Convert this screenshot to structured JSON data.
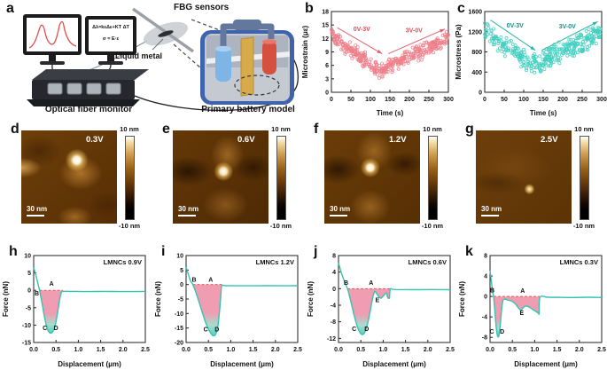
{
  "panel_a": {
    "letter": "a",
    "equation_line1": "Δλ=kεΔε+KT ΔT",
    "equation_line2": "σ = E·ε",
    "fbg_label": "FBG sensors",
    "liquid_metal_label": "Liquid metal",
    "device_label": "Optical fiber monitor",
    "battery_label": "Primary battery model"
  },
  "afm": {
    "cbar_top": "10 nm",
    "cbar_bottom": "-10 nm",
    "scale_label": "30 nm",
    "panels": [
      {
        "letter": "d",
        "voltage": "0.3V"
      },
      {
        "letter": "e",
        "voltage": "0.6V"
      },
      {
        "letter": "f",
        "voltage": "1.2V"
      },
      {
        "letter": "g",
        "voltage": "2.5V"
      }
    ]
  },
  "chart_data": [
    {
      "id": "b",
      "letter": "b",
      "type": "scatter",
      "xlabel": "Time (s)",
      "ylabel": "Microstrain (με)",
      "xlim": [
        0,
        300
      ],
      "ylim": [
        0,
        18
      ],
      "xticks": [
        0,
        50,
        100,
        150,
        200,
        250,
        300
      ],
      "yticks": [
        0,
        3,
        6,
        9,
        12,
        15,
        18
      ],
      "point_color": "#ee7f8b",
      "arrow_color": "#e0606c",
      "text_color": "#d8505e",
      "n_points": 380,
      "seed": 42,
      "spread": 2.0,
      "trend": [
        [
          0,
          12.6
        ],
        [
          122,
          4.8
        ],
        [
          300,
          11.8
        ]
      ],
      "annotations": [
        {
          "text": "0V-3V",
          "x": 78,
          "y": 13.6
        },
        {
          "text": "3V-0V",
          "x": 212,
          "y": 13.4
        }
      ],
      "arrows": [
        [
          15,
          14.4,
          130,
          8.6
        ],
        [
          146,
          8.6,
          291,
          14.1
        ]
      ]
    },
    {
      "id": "c",
      "letter": "c",
      "type": "scatter",
      "xlabel": "Time (s)",
      "ylabel": "Microstress (Pa)",
      "xlim": [
        0,
        300
      ],
      "ylim": [
        0,
        1600
      ],
      "xticks": [
        0,
        50,
        100,
        150,
        200,
        250,
        300
      ],
      "yticks": [
        0,
        400,
        800,
        1200,
        1600
      ],
      "point_color": "#41cfc0",
      "arrow_color": "#2fb4a6",
      "text_color": "#1f8d84",
      "n_points": 360,
      "seed": 7,
      "spread": 230,
      "trend": [
        [
          0,
          1210
        ],
        [
          122,
          520
        ],
        [
          300,
          1190
        ]
      ],
      "annotations": [
        {
          "text": "0V-3V",
          "x": 78,
          "y": 1280
        },
        {
          "text": "3V-0V",
          "x": 212,
          "y": 1270
        }
      ],
      "arrows": [
        [
          15,
          1430,
          130,
          830
        ],
        [
          146,
          830,
          290,
          1400
        ]
      ]
    },
    {
      "id": "h",
      "letter": "h",
      "type": "line",
      "label": "LMNCs  0.9V",
      "xlabel": "Displacement (μm)",
      "ylabel": "Force (nN)",
      "xlim": [
        0,
        2.5
      ],
      "ylim": [
        -15,
        10
      ],
      "xticks": [
        0,
        0.5,
        1,
        1.5,
        2,
        2.5
      ],
      "yticks": [
        10,
        5,
        0,
        -5,
        -10,
        -15
      ],
      "points": [
        [
          0,
          6.5
        ],
        [
          0.04,
          4.8
        ],
        [
          0.09,
          2.2
        ],
        [
          0.13,
          0
        ],
        [
          0.18,
          -3.2
        ],
        [
          0.24,
          -7.5
        ],
        [
          0.3,
          -10.8
        ],
        [
          0.36,
          -12.2
        ],
        [
          0.42,
          -12.0
        ],
        [
          0.48,
          -10.2
        ],
        [
          0.53,
          -6.8
        ],
        [
          0.58,
          -2.8
        ],
        [
          0.62,
          -0.6
        ],
        [
          0.66,
          -0.3
        ],
        [
          0.8,
          -0.3
        ],
        [
          1.2,
          -0.35
        ],
        [
          1.6,
          -0.3
        ],
        [
          2.0,
          -0.35
        ],
        [
          2.5,
          -0.3
        ]
      ],
      "fill_range": [
        0.13,
        0.64
      ],
      "dash_range": [
        0.13,
        0.66
      ],
      "markers": [
        {
          "t": "B",
          "x": 0.07,
          "y": -1.5
        },
        {
          "t": "A",
          "x": 0.4,
          "y": 1.3
        },
        {
          "t": "C",
          "x": 0.25,
          "y": -11.4
        },
        {
          "t": "D",
          "x": 0.5,
          "y": -11.4
        }
      ]
    },
    {
      "id": "i",
      "letter": "i",
      "type": "line",
      "label": "LMNCs  1.2V",
      "xlabel": "Displacement (μm)",
      "ylabel": "Force (nN)",
      "xlim": [
        0,
        2.5
      ],
      "ylim": [
        -20,
        10
      ],
      "xticks": [
        0,
        0.5,
        1,
        1.5,
        2,
        2.5
      ],
      "yticks": [
        10,
        5,
        0,
        -5,
        -10,
        -15,
        -20
      ],
      "points": [
        [
          0,
          6
        ],
        [
          0.05,
          3.5
        ],
        [
          0.1,
          1.2
        ],
        [
          0.15,
          0
        ],
        [
          0.22,
          -2.8
        ],
        [
          0.3,
          -6.5
        ],
        [
          0.38,
          -10.5
        ],
        [
          0.46,
          -14
        ],
        [
          0.54,
          -16.5
        ],
        [
          0.6,
          -17.6
        ],
        [
          0.66,
          -17.2
        ],
        [
          0.71,
          -14.5
        ],
        [
          0.75,
          -9
        ],
        [
          0.78,
          -3.5
        ],
        [
          0.8,
          -0.5
        ],
        [
          0.9,
          -0.4
        ],
        [
          1.3,
          -0.45
        ],
        [
          1.8,
          -0.4
        ],
        [
          2.2,
          -0.45
        ],
        [
          2.5,
          -0.4
        ]
      ],
      "fill_range": [
        0.15,
        0.81
      ],
      "dash_range": [
        0.15,
        0.82
      ],
      "markers": [
        {
          "t": "B",
          "x": 0.18,
          "y": 1.0
        },
        {
          "t": "A",
          "x": 0.55,
          "y": 1.0
        },
        {
          "t": "C",
          "x": 0.44,
          "y": -16.2
        },
        {
          "t": "D",
          "x": 0.69,
          "y": -16.2
        }
      ]
    },
    {
      "id": "j",
      "letter": "j",
      "type": "line",
      "label": "LMNCs  0.6V",
      "xlabel": "Displacement (μm)",
      "ylabel": "Force (nN)",
      "xlim": [
        0,
        2.5
      ],
      "ylim": [
        -13,
        8
      ],
      "xticks": [
        0,
        0.5,
        1,
        1.5,
        2,
        2.5
      ],
      "yticks": [
        8,
        4,
        0,
        -4,
        -8,
        -12
      ],
      "points": [
        [
          0,
          6.2
        ],
        [
          0.06,
          4
        ],
        [
          0.13,
          1.8
        ],
        [
          0.2,
          0
        ],
        [
          0.27,
          -2.8
        ],
        [
          0.34,
          -6
        ],
        [
          0.41,
          -8.8
        ],
        [
          0.48,
          -10.6
        ],
        [
          0.54,
          -11.1
        ],
        [
          0.6,
          -10.3
        ],
        [
          0.66,
          -8
        ],
        [
          0.72,
          -4.8
        ],
        [
          0.77,
          -2
        ],
        [
          0.81,
          -0.7
        ],
        [
          0.85,
          -1.1
        ],
        [
          0.9,
          -1.9
        ],
        [
          0.95,
          -2.3
        ],
        [
          1.0,
          -1.8
        ],
        [
          1.05,
          -1.2
        ],
        [
          1.08,
          -1.1
        ],
        [
          1.1,
          -2.1
        ],
        [
          1.14,
          -2.2
        ],
        [
          1.16,
          -0.1
        ],
        [
          1.25,
          -0.2
        ],
        [
          1.7,
          -0.25
        ],
        [
          2.1,
          -0.2
        ],
        [
          2.5,
          -0.25
        ]
      ],
      "fill_range": [
        0.2,
        1.16
      ],
      "dash_range": [
        0.2,
        1.16
      ],
      "markers": [
        {
          "t": "B",
          "x": 0.17,
          "y": 0.9
        },
        {
          "t": "A",
          "x": 0.73,
          "y": 0.9
        },
        {
          "t": "E",
          "x": 0.87,
          "y": -3.3
        },
        {
          "t": "C",
          "x": 0.35,
          "y": -10.2
        },
        {
          "t": "D",
          "x": 0.63,
          "y": -10.2
        }
      ]
    },
    {
      "id": "k",
      "letter": "k",
      "type": "line",
      "label": "LMNCs  0.3V",
      "xlabel": "Displacement (μm)",
      "ylabel": "Force (nN)",
      "xlim": [
        0,
        2.5
      ],
      "ylim": [
        -9,
        8
      ],
      "xticks": [
        0,
        0.5,
        1,
        1.5,
        2,
        2.5
      ],
      "yticks": [
        8,
        4,
        0,
        -4,
        -8
      ],
      "points": [
        [
          0,
          5
        ],
        [
          0.03,
          3
        ],
        [
          0.06,
          0.8
        ],
        [
          0.08,
          0
        ],
        [
          0.11,
          -3
        ],
        [
          0.14,
          -6.2
        ],
        [
          0.17,
          -7.8
        ],
        [
          0.2,
          -7.6
        ],
        [
          0.23,
          -5.5
        ],
        [
          0.26,
          -2.5
        ],
        [
          0.29,
          -0.8
        ],
        [
          0.33,
          -0.5
        ],
        [
          0.4,
          -0.7
        ],
        [
          0.48,
          -0.9
        ],
        [
          0.55,
          -1.3
        ],
        [
          0.6,
          -1.8
        ],
        [
          0.65,
          -2.4
        ],
        [
          0.7,
          -2.7
        ],
        [
          0.74,
          -2.2
        ],
        [
          0.78,
          -1.9
        ],
        [
          0.83,
          -1.9
        ],
        [
          0.88,
          -2.1
        ],
        [
          0.95,
          -2.5
        ],
        [
          1.02,
          -2.9
        ],
        [
          1.08,
          -3.2
        ],
        [
          1.1,
          -3.3
        ],
        [
          1.12,
          -0.15
        ],
        [
          1.3,
          -0.15
        ],
        [
          1.8,
          -0.2
        ],
        [
          2.2,
          -0.15
        ],
        [
          2.5,
          -0.2
        ]
      ],
      "fill_range": [
        0.08,
        1.11
      ],
      "dash_range": [
        0.08,
        1.11
      ],
      "markers": [
        {
          "t": "B",
          "x": 0.05,
          "y": 0.8
        },
        {
          "t": "A",
          "x": 0.73,
          "y": 0.7
        },
        {
          "t": "E",
          "x": 0.71,
          "y": -3.6
        },
        {
          "t": "C",
          "x": 0.04,
          "y": -7.3
        },
        {
          "t": "D",
          "x": 0.27,
          "y": -7.3
        }
      ]
    }
  ],
  "style": {
    "curve_color": "#35c3b2",
    "fill_top": "#f09cb1",
    "fill_bottom": "#5ecfbf",
    "dash_color": "#e05a5a"
  }
}
